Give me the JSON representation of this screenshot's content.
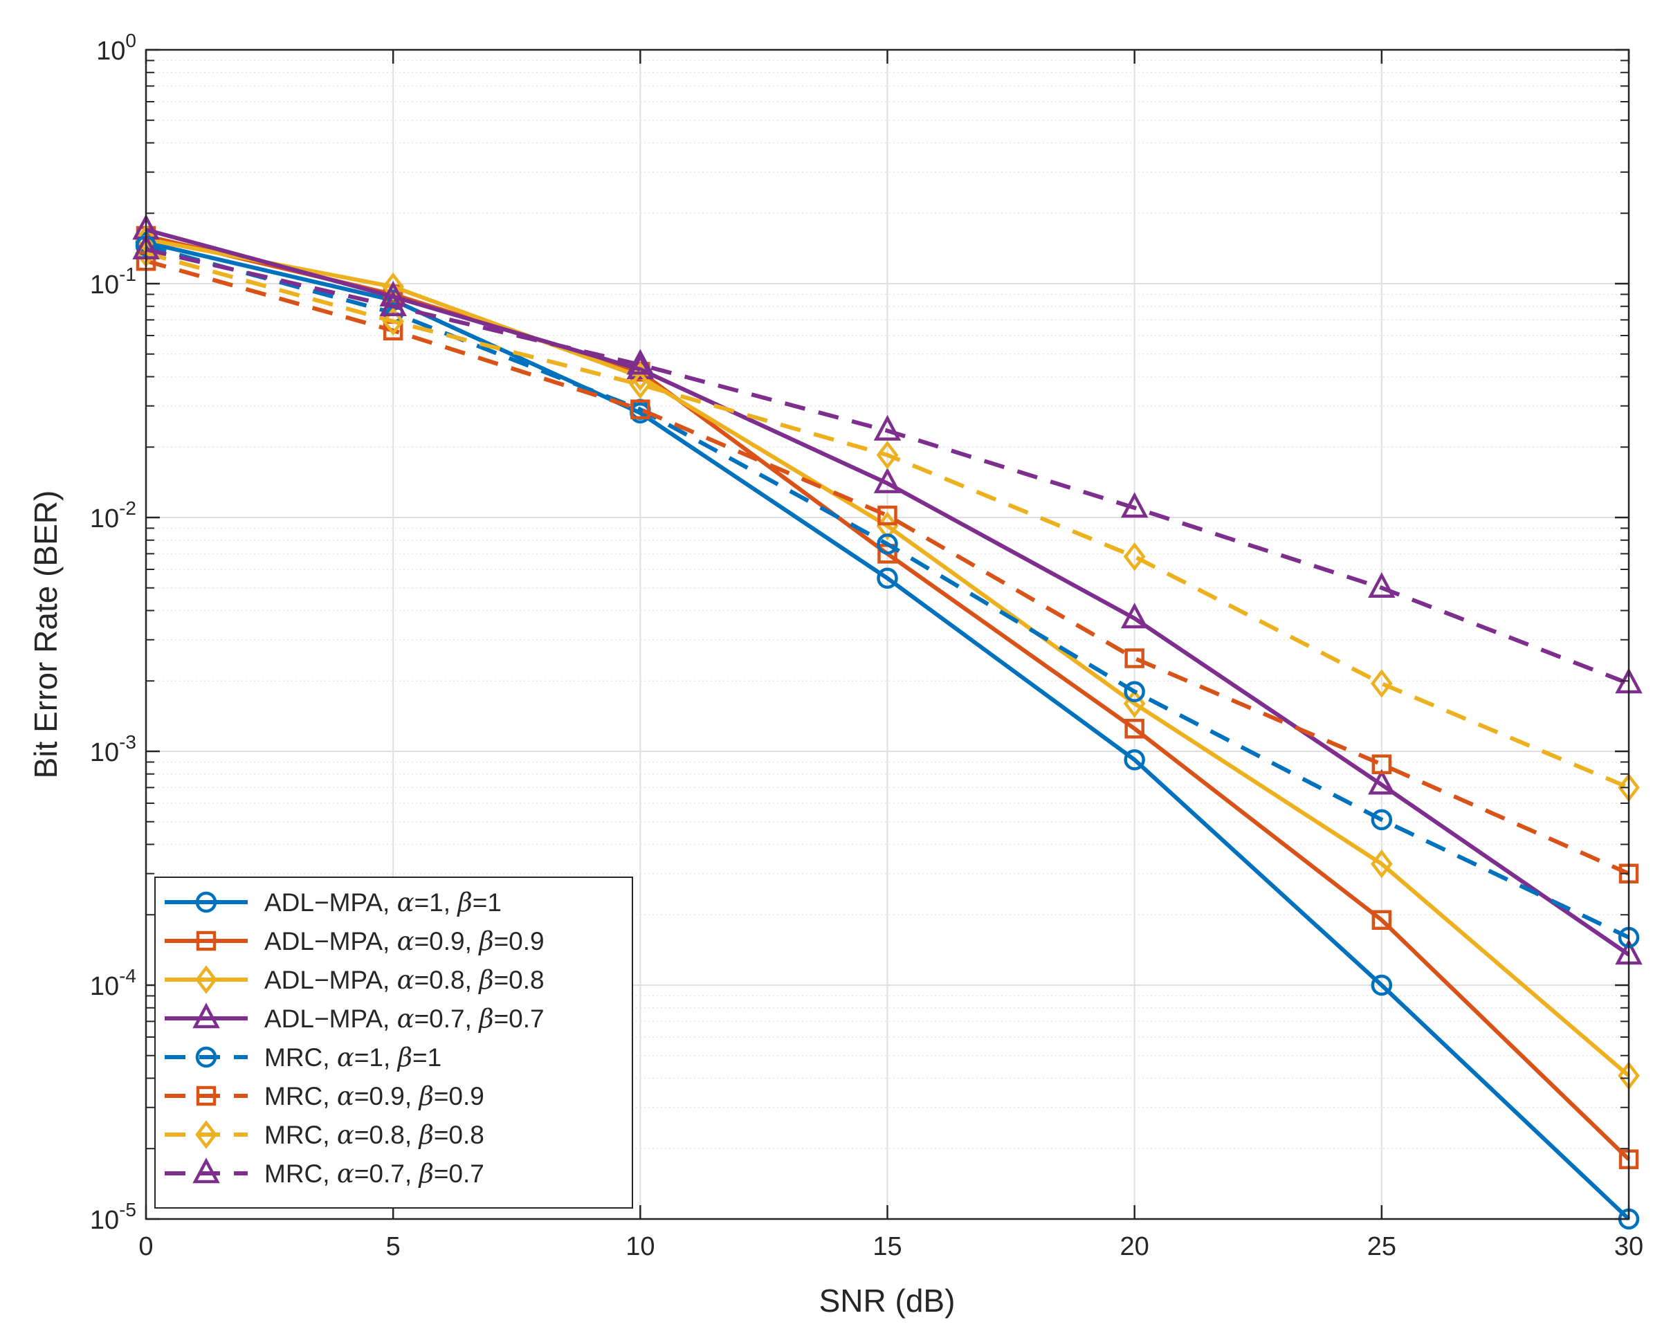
{
  "chart_data": {
    "type": "line",
    "title": "",
    "xlabel": "SNR (dB)",
    "ylabel": "Bit Error Rate (BER)",
    "xlim": [
      0,
      30
    ],
    "ylim": [
      1e-05,
      1
    ],
    "yscale": "log",
    "grid": true,
    "minor_grid": true,
    "legend_location": "bottom-left",
    "x_ticks": [
      {
        "value": 0,
        "label": "0"
      },
      {
        "value": 5,
        "label": "5"
      },
      {
        "value": 10,
        "label": "10"
      },
      {
        "value": 15,
        "label": "15"
      },
      {
        "value": 20,
        "label": "20"
      },
      {
        "value": 25,
        "label": "25"
      },
      {
        "value": 30,
        "label": "30"
      }
    ],
    "y_ticks": [
      {
        "value": 1,
        "base": "10",
        "exp": "0"
      },
      {
        "value": 0.1,
        "base": "10",
        "exp": "-1"
      },
      {
        "value": 0.01,
        "base": "10",
        "exp": "-2"
      },
      {
        "value": 0.001,
        "base": "10",
        "exp": "-3"
      },
      {
        "value": 0.0001,
        "base": "10",
        "exp": "-4"
      },
      {
        "value": 1e-05,
        "base": "10",
        "exp": "-5"
      }
    ],
    "x": [
      0,
      5,
      10,
      15,
      20,
      25,
      30
    ],
    "series": [
      {
        "name": "ADL−MPA, α=1, β=1",
        "method": "ADL−MPA",
        "alpha": "1",
        "beta": "1",
        "color": "#0072BD",
        "linestyle": "solid",
        "marker": "circle",
        "values": [
          0.15,
          0.085,
          0.028,
          0.0055,
          0.00092,
          0.0001,
          1e-05
        ]
      },
      {
        "name": "ADL−MPA, α=0.9, β=0.9",
        "method": "ADL−MPA",
        "alpha": "0.9",
        "beta": "0.9",
        "color": "#D95319",
        "linestyle": "solid",
        "marker": "square",
        "values": [
          0.16,
          0.09,
          0.042,
          0.007,
          0.00125,
          0.00019,
          1.8e-05
        ]
      },
      {
        "name": "ADL−MPA, α=0.8, β=0.8",
        "method": "ADL−MPA",
        "alpha": "0.8",
        "beta": "0.8",
        "color": "#EDB120",
        "linestyle": "solid",
        "marker": "diamond",
        "values": [
          0.155,
          0.097,
          0.04,
          0.0092,
          0.0016,
          0.00033,
          4.1e-05
        ]
      },
      {
        "name": "ADL−MPA, α=0.7, β=0.7",
        "method": "ADL−MPA",
        "alpha": "0.7",
        "beta": "0.7",
        "color": "#7E2F8E",
        "linestyle": "solid",
        "marker": "triangle",
        "values": [
          0.17,
          0.088,
          0.043,
          0.014,
          0.0037,
          0.00072,
          0.000135
        ]
      },
      {
        "name": "MRC, α=1, β=1",
        "method": "MRC",
        "alpha": "1",
        "beta": "1",
        "color": "#0072BD",
        "linestyle": "dashed",
        "marker": "circle",
        "values": [
          0.145,
          0.075,
          0.029,
          0.0077,
          0.0018,
          0.00051,
          0.00016
        ]
      },
      {
        "name": "MRC, α=0.9, β=0.9",
        "method": "MRC",
        "alpha": "0.9",
        "beta": "0.9",
        "color": "#D95319",
        "linestyle": "dashed",
        "marker": "square",
        "values": [
          0.125,
          0.063,
          0.029,
          0.0102,
          0.0025,
          0.00088,
          0.0003
        ]
      },
      {
        "name": "MRC, α=0.8, β=0.8",
        "method": "MRC",
        "alpha": "0.8",
        "beta": "0.8",
        "color": "#EDB120",
        "linestyle": "dashed",
        "marker": "diamond",
        "values": [
          0.135,
          0.069,
          0.037,
          0.0185,
          0.0068,
          0.00195,
          0.0007
        ]
      },
      {
        "name": "MRC, α=0.7, β=0.7",
        "method": "MRC",
        "alpha": "0.7",
        "beta": "0.7",
        "color": "#7E2F8E",
        "linestyle": "dashed",
        "marker": "triangle",
        "values": [
          0.14,
          0.08,
          0.045,
          0.0235,
          0.011,
          0.005,
          0.00195
        ]
      }
    ]
  }
}
